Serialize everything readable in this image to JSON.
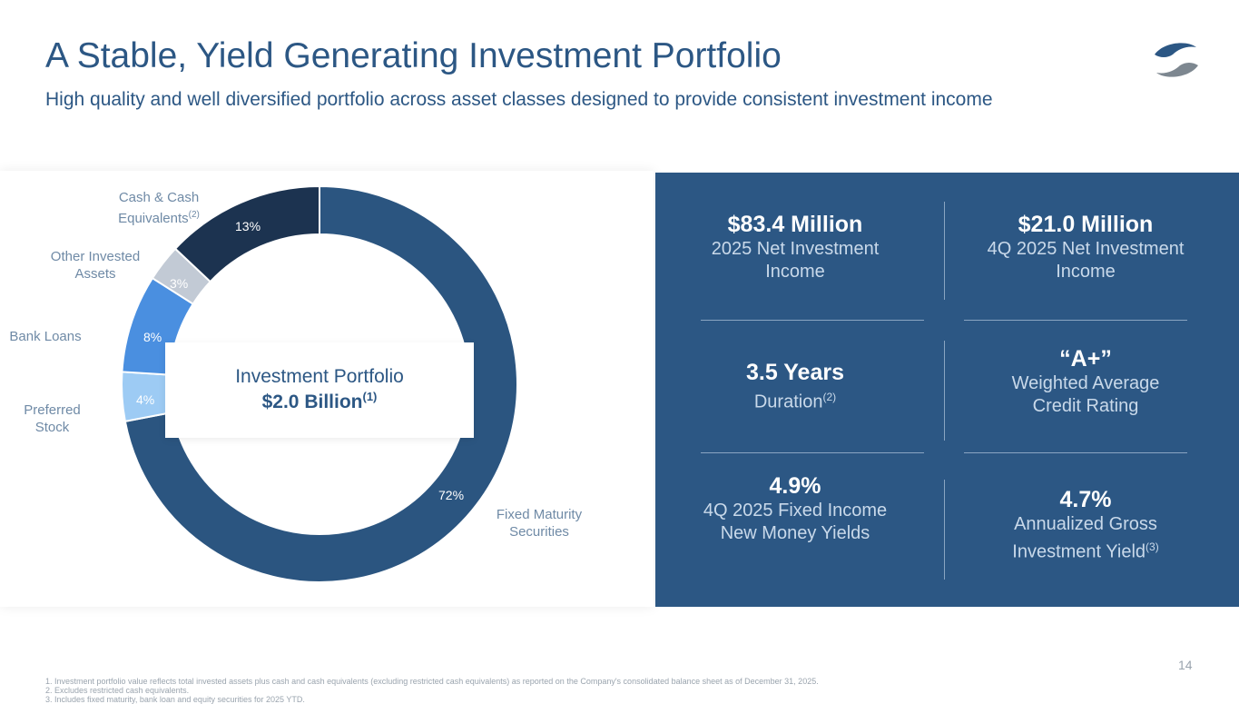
{
  "header": {
    "title": "A Stable, Yield Generating Investment Portfolio",
    "subtitle": "High quality and well diversified portfolio across asset classes designed to provide consistent investment income"
  },
  "colors": {
    "brand": "#2c5784"
  },
  "chart_data": {
    "type": "pie",
    "title": "Investment Portfolio",
    "subtitle": "$2.0 Billion",
    "subtitle_note": "(1)",
    "slices": [
      {
        "label": "Fixed Maturity Securities",
        "value": 72,
        "text": "72%",
        "color": "#2b5580"
      },
      {
        "label": "Preferred Stock",
        "value": 4,
        "text": "4%",
        "color": "#9dcbf4"
      },
      {
        "label": "Bank Loans",
        "value": 8,
        "text": "8%",
        "color": "#4a8fe0"
      },
      {
        "label": "Other Invested Assets",
        "value": 3,
        "text": "3%",
        "color": "#c2cad5"
      },
      {
        "label": "Cash & Cash Equivalents",
        "note": "(2)",
        "value": 13,
        "text": "13%",
        "color": "#1c3350"
      }
    ]
  },
  "stats": [
    {
      "value": "$83.4 Million",
      "desc": "2025 Net Investment Income"
    },
    {
      "value": "$21.0 Million",
      "desc": "4Q 2025 Net Investment Income"
    },
    {
      "value": "3.5 Years",
      "desc": "Duration",
      "note": "(2)"
    },
    {
      "value": "“A+”",
      "desc": "Weighted Average Credit Rating"
    },
    {
      "value": "4.9%",
      "desc": "4Q 2025 Fixed Income New Money Yields"
    },
    {
      "value": "4.7%",
      "desc": "Annualized Gross Investment Yield",
      "note": "(3)"
    }
  ],
  "footnotes": [
    "1.  Investment portfolio value reflects total invested assets plus cash and cash equivalents (excluding restricted cash equivalents) as reported on the Company's consolidated balance sheet as of December 31, 2025.",
    "2.  Excludes restricted cash equivalents.",
    "3.  Includes fixed maturity, bank loan and equity securities for 2025 YTD."
  ],
  "page_number": "14"
}
